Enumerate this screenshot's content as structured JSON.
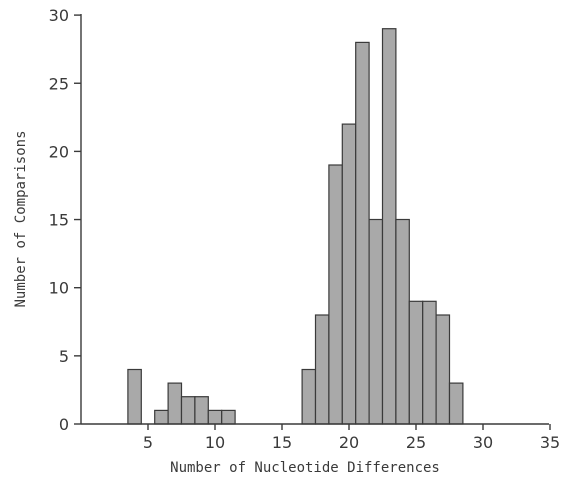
{
  "chart_data": {
    "type": "bar",
    "title": "",
    "xlabel": "Number of Nucleotide Differences",
    "ylabel": "Number of Comparisons",
    "xlim": [
      0,
      35
    ],
    "ylim": [
      0,
      30
    ],
    "xticks": [
      5,
      10,
      15,
      20,
      25,
      30,
      35
    ],
    "yticks": [
      0,
      5,
      10,
      15,
      20,
      25,
      30
    ],
    "bin_width": 1,
    "x": [
      4,
      6,
      7,
      8,
      9,
      10,
      11,
      17,
      18,
      19,
      20,
      21,
      22,
      23,
      24,
      25,
      26,
      27,
      28
    ],
    "values": [
      4,
      1,
      3,
      2,
      2,
      1,
      1,
      4,
      8,
      19,
      22,
      28,
      15,
      29,
      15,
      9,
      9,
      8,
      3
    ],
    "grid": false,
    "legend": "none"
  }
}
